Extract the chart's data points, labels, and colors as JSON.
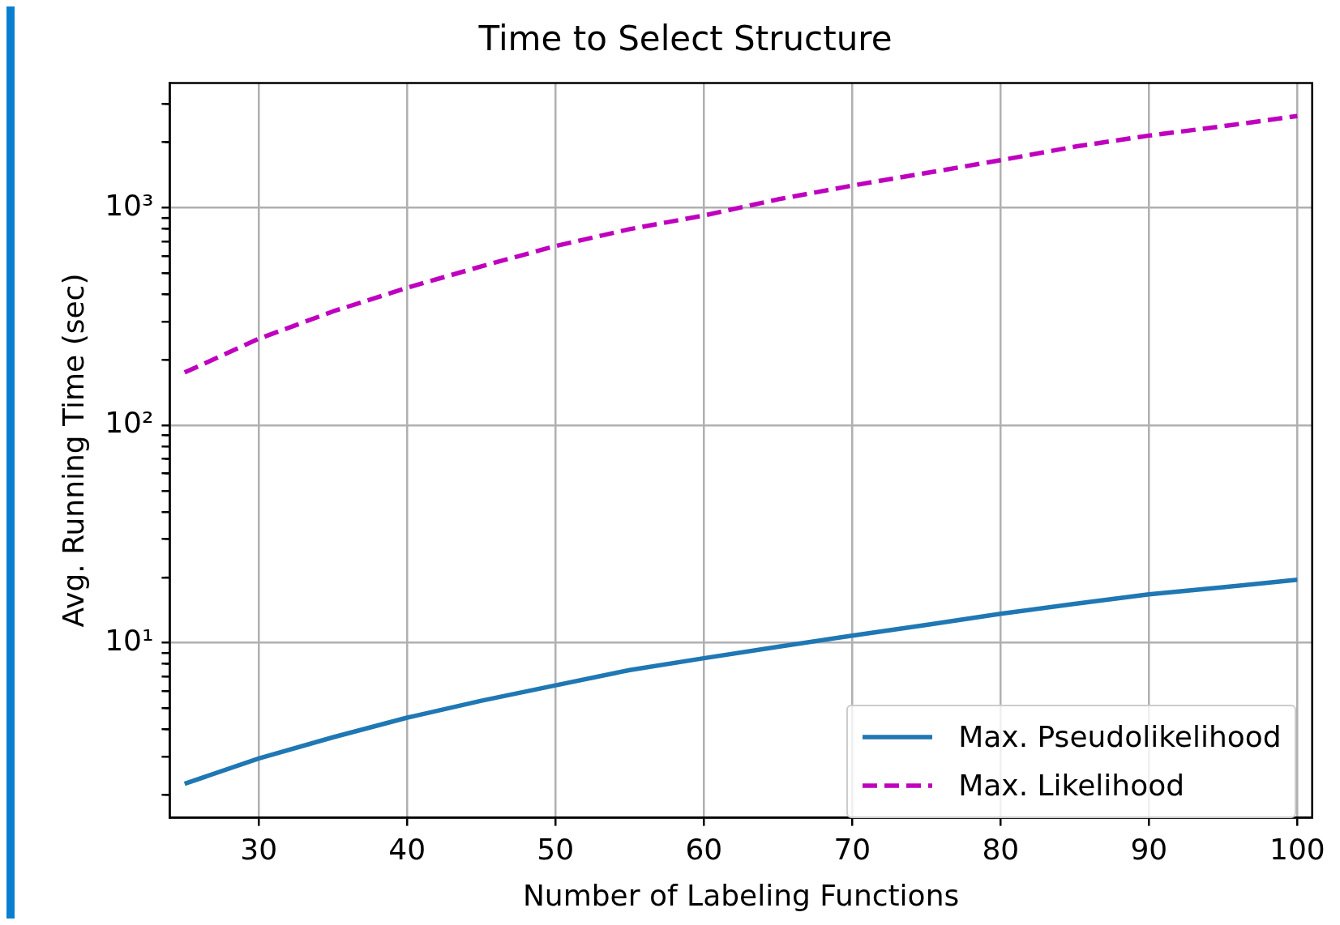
{
  "chart_data": {
    "type": "line",
    "title": "Time to Select Structure",
    "xlabel": "Number of Labeling Functions",
    "ylabel": "Avg. Running Time (sec)",
    "x": [
      25,
      30,
      35,
      40,
      45,
      50,
      55,
      60,
      65,
      70,
      75,
      80,
      85,
      90,
      95,
      100
    ],
    "series": [
      {
        "name": "Max. Pseudolikelihood",
        "color": "#1f77b4",
        "line_style": "solid",
        "values": [
          2.25,
          2.94,
          3.68,
          4.53,
          5.42,
          6.38,
          7.5,
          8.5,
          9.6,
          10.8,
          12.1,
          13.6,
          15.1,
          16.7,
          18.0,
          19.5
        ]
      },
      {
        "name": "Max. Likelihood",
        "color": "#bf00bf",
        "line_style": "dashed",
        "values": [
          175,
          250,
          334,
          429,
          538,
          667,
          798,
          922,
          1094,
          1265,
          1446,
          1655,
          1910,
          2148,
          2372,
          2642
        ]
      }
    ],
    "xlim": [
      24,
      101
    ],
    "xticks": [
      30,
      40,
      50,
      60,
      70,
      80,
      90,
      100
    ],
    "ylim": [
      1.57,
      3750
    ],
    "yticks": [
      {
        "value": 2,
        "label": null
      },
      {
        "value": 3,
        "label": null
      },
      {
        "value": 4,
        "label": null
      },
      {
        "value": 5,
        "label": null
      },
      {
        "value": 6,
        "label": null
      },
      {
        "value": 7,
        "label": null
      },
      {
        "value": 8,
        "label": null
      },
      {
        "value": 9,
        "label": null
      },
      {
        "value": 10,
        "label": "10¹"
      },
      {
        "value": 20,
        "label": null
      },
      {
        "value": 30,
        "label": null
      },
      {
        "value": 40,
        "label": null
      },
      {
        "value": 50,
        "label": null
      },
      {
        "value": 60,
        "label": null
      },
      {
        "value": 70,
        "label": null
      },
      {
        "value": 80,
        "label": null
      },
      {
        "value": 90,
        "label": null
      },
      {
        "value": 100,
        "label": "10²"
      },
      {
        "value": 200,
        "label": null
      },
      {
        "value": 300,
        "label": null
      },
      {
        "value": 400,
        "label": null
      },
      {
        "value": 500,
        "label": null
      },
      {
        "value": 600,
        "label": null
      },
      {
        "value": 700,
        "label": null
      },
      {
        "value": 800,
        "label": null
      },
      {
        "value": 900,
        "label": null
      },
      {
        "value": 1000,
        "label": "10³"
      },
      {
        "value": 2000,
        "label": null
      },
      {
        "value": 3000,
        "label": null
      }
    ],
    "log": "y",
    "grid": true,
    "legend": "bottom right",
    "marker": "none"
  }
}
